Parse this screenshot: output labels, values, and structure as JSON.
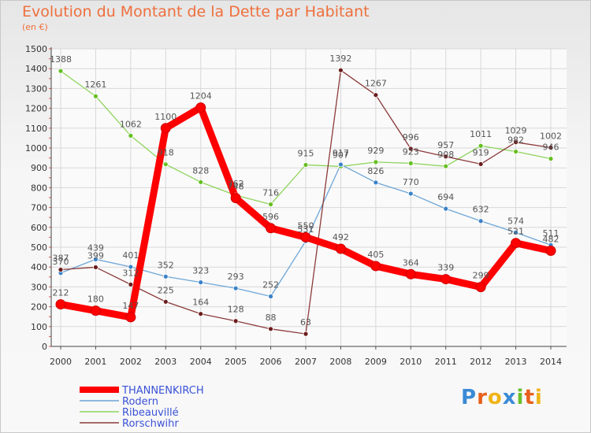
{
  "header": {
    "title": "Evolution du Montant de la Dette par Habitant",
    "subtitle": "(en €)"
  },
  "logo": {
    "text": "Proxiti",
    "colors": [
      "#3a8ad6",
      "#e8601c",
      "#f0b418",
      "#3a8ad6",
      "#6abf2a",
      "#e8601c",
      "#f0b418"
    ]
  },
  "chart_data": {
    "type": "line",
    "title": "Evolution du Montant de la Dette par Habitant",
    "subtitle": "(en €)",
    "categories": [
      "2000",
      "2001",
      "2002",
      "2003",
      "2004",
      "2005",
      "2006",
      "2007",
      "2008",
      "2009",
      "2010",
      "2011",
      "2012",
      "2013",
      "2014"
    ],
    "yticks": [
      0,
      100,
      200,
      300,
      400,
      500,
      600,
      700,
      800,
      900,
      1000,
      1100,
      1200,
      1300,
      1400,
      1500
    ],
    "ylim": [
      0,
      1500
    ],
    "grid": true,
    "legend_position": "bottom-left",
    "series": [
      {
        "name": "Ribeauvillé",
        "color": "#8ed45c",
        "marker": "#66bf22",
        "width": 1.3,
        "values": [
          1388,
          1261,
          1062,
          918,
          828,
          762,
          716,
          915,
          907,
          929,
          923,
          908,
          1011,
          982,
          946
        ]
      },
      {
        "name": "Rodern",
        "color": "#6ea6d6",
        "marker": "#3a82c8",
        "width": 1.3,
        "values": [
          370,
          439,
          401,
          352,
          323,
          293,
          252,
          531,
          917,
          826,
          770,
          694,
          632,
          574,
          511
        ]
      },
      {
        "name": "Rorschwihr",
        "color": "#8c3a3a",
        "marker": "#6a1c1c",
        "width": 1.3,
        "values": [
          387,
          399,
          312,
          225,
          164,
          128,
          88,
          63,
          1392,
          1267,
          996,
          957,
          919,
          1029,
          1002
        ]
      },
      {
        "name": "THANNENKIRCH",
        "color": "#ff0000",
        "marker": "#ff0000",
        "width": 9,
        "values": [
          212,
          180,
          147,
          1100,
          1204,
          748,
          596,
          550,
          492,
          405,
          364,
          339,
          299,
          521,
          482
        ]
      }
    ],
    "legend": [
      "THANNENKIRCH",
      "Rodern",
      "Ribeauvillé",
      "Rorschwihr"
    ]
  }
}
